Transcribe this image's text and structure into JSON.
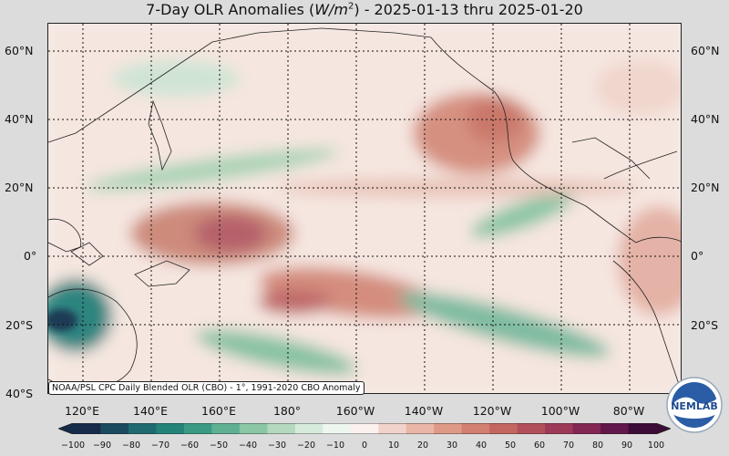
{
  "title": {
    "prefix": "7-Day OLR Anomalies (",
    "unit_base": "W/m",
    "unit_exp": "2",
    "suffix": ") - 2025-01-13 thru 2025-01-20"
  },
  "lat_labels": [
    "60°N",
    "40°N",
    "20°N",
    "0°",
    "20°S",
    "40°S"
  ],
  "lon_labels": [
    "120°E",
    "140°E",
    "160°E",
    "180°",
    "160°W",
    "140°W",
    "120°W",
    "100°W",
    "80°W"
  ],
  "credit": "NOAA/PSL CPC Daily Blended OLR (CBO) - 1°, 1991-2020 CBO Anomaly",
  "colorbar": {
    "ticks": [
      "−100",
      "−90",
      "−80",
      "−70",
      "−60",
      "−50",
      "−40",
      "−30",
      "−20",
      "−10",
      "0",
      "10",
      "20",
      "30",
      "40",
      "50",
      "60",
      "70",
      "80",
      "90",
      "100"
    ],
    "colors": [
      "#152b4a",
      "#1b4a5e",
      "#1f6a70",
      "#238379",
      "#3a9a84",
      "#5fb092",
      "#8bc6a5",
      "#b4d9bf",
      "#d7ebdc",
      "#eef6f0",
      "#fbf1ee",
      "#f2d3cb",
      "#e9b6a7",
      "#de9a87",
      "#d27f70",
      "#c46660",
      "#b24f5a",
      "#9c3a57",
      "#822753",
      "#62174a",
      "#3c0c36"
    ]
  },
  "logo": {
    "text": "NEMLAB",
    "icon": "noaa-eagle-logo-icon"
  }
}
